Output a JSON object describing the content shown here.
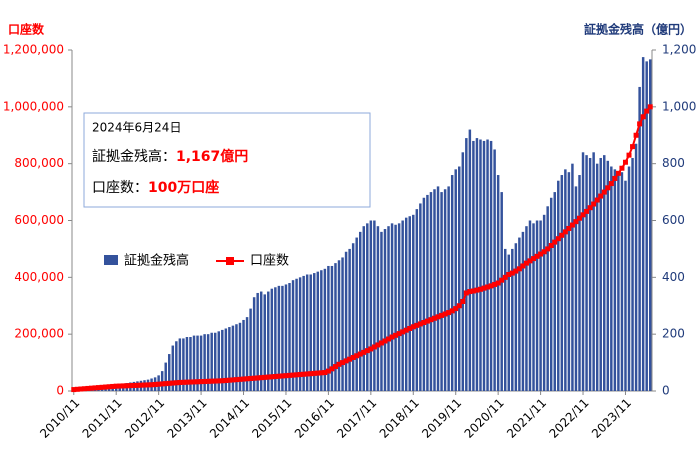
{
  "chart_data": {
    "type": "combo",
    "left_axis_label": "口座数",
    "right_axis_label": "証拠金残高（億円）",
    "annotation": {
      "date": "2024年6月24日",
      "balance_label": "証拠金残高：",
      "balance_value": "1,167億円",
      "accounts_label": "口座数：",
      "accounts_value": "100万口座"
    },
    "categories": [
      "2010/11",
      null,
      null,
      null,
      null,
      null,
      null,
      null,
      null,
      null,
      null,
      null,
      "2011/11",
      null,
      null,
      null,
      null,
      null,
      null,
      null,
      null,
      null,
      null,
      null,
      "2012/11",
      null,
      null,
      null,
      null,
      null,
      null,
      null,
      null,
      null,
      null,
      null,
      "2013/11",
      null,
      null,
      null,
      null,
      null,
      null,
      null,
      null,
      null,
      null,
      null,
      "2014/11",
      null,
      null,
      null,
      null,
      null,
      null,
      null,
      null,
      null,
      null,
      null,
      "2015/11",
      null,
      null,
      null,
      null,
      null,
      null,
      null,
      null,
      null,
      null,
      null,
      "2016/11",
      null,
      null,
      null,
      null,
      null,
      null,
      null,
      null,
      null,
      null,
      null,
      "2017/11",
      null,
      null,
      null,
      null,
      null,
      null,
      null,
      null,
      null,
      null,
      null,
      "2018/11",
      null,
      null,
      null,
      null,
      null,
      null,
      null,
      null,
      null,
      null,
      null,
      "2019/11",
      null,
      null,
      null,
      null,
      null,
      null,
      null,
      null,
      null,
      null,
      null,
      "2020/11",
      null,
      null,
      null,
      null,
      null,
      null,
      null,
      null,
      null,
      null,
      null,
      "2021/11",
      null,
      null,
      null,
      null,
      null,
      null,
      null,
      null,
      null,
      null,
      null,
      "2022/11",
      null,
      null,
      null,
      null,
      null,
      null,
      null,
      null,
      null,
      null,
      null,
      "2023/11",
      null,
      null,
      null,
      null,
      null,
      null,
      null
    ],
    "series": [
      {
        "name": "証拠金残高",
        "type": "bar",
        "axis": "y2",
        "color": "#34529c",
        "values": [
          8,
          9,
          10,
          11,
          12,
          13,
          14,
          15,
          16,
          17,
          18,
          20,
          22,
          24,
          26,
          28,
          30,
          32,
          34,
          36,
          38,
          40,
          44,
          48,
          55,
          70,
          100,
          130,
          160,
          175,
          185,
          185,
          190,
          190,
          195,
          195,
          195,
          200,
          200,
          205,
          205,
          210,
          215,
          220,
          225,
          230,
          235,
          240,
          250,
          260,
          290,
          330,
          345,
          350,
          340,
          350,
          360,
          365,
          370,
          370,
          375,
          380,
          390,
          395,
          400,
          405,
          410,
          410,
          415,
          420,
          425,
          430,
          440,
          440,
          450,
          460,
          470,
          490,
          500,
          520,
          540,
          560,
          580,
          590,
          600,
          600,
          580,
          560,
          570,
          580,
          590,
          585,
          590,
          600,
          610,
          615,
          620,
          640,
          660,
          680,
          690,
          700,
          710,
          720,
          700,
          710,
          720,
          760,
          780,
          790,
          840,
          890,
          920,
          880,
          890,
          885,
          880,
          885,
          880,
          850,
          760,
          700,
          500,
          480,
          500,
          520,
          540,
          560,
          580,
          600,
          590,
          600,
          600,
          620,
          650,
          680,
          700,
          740,
          760,
          780,
          770,
          800,
          720,
          760,
          840,
          830,
          820,
          840,
          800,
          820,
          830,
          810,
          790,
          780,
          760,
          770,
          740,
          790,
          820,
          870,
          1070,
          1175,
          1160,
          1167
        ]
      },
      {
        "name": "口座数",
        "type": "line",
        "axis": "y",
        "color": "#ff0000",
        "values": [
          5000,
          6000,
          7000,
          8000,
          9000,
          10000,
          11000,
          12000,
          13000,
          14000,
          15000,
          16000,
          17000,
          17500,
          18000,
          18500,
          19000,
          19500,
          20000,
          20500,
          21000,
          21500,
          22000,
          23000,
          24000,
          25000,
          26000,
          27000,
          28000,
          29000,
          30000,
          30500,
          31000,
          31500,
          32000,
          32500,
          33000,
          33500,
          34000,
          34500,
          35000,
          35500,
          36000,
          37000,
          38000,
          39000,
          40000,
          41000,
          42000,
          43000,
          44000,
          45000,
          46000,
          47000,
          48000,
          49000,
          50000,
          51000,
          52000,
          53000,
          54000,
          55000,
          56000,
          57000,
          58000,
          59000,
          60000,
          61000,
          62000,
          63000,
          64000,
          65000,
          70000,
          78000,
          86000,
          94000,
          100000,
          106000,
          112000,
          118000,
          124000,
          130000,
          136000,
          142000,
          148000,
          155000,
          162000,
          169000,
          176000,
          183000,
          190000,
          196000,
          202000,
          208000,
          214000,
          220000,
          226000,
          231000,
          236000,
          241000,
          246000,
          251000,
          256000,
          261000,
          266000,
          271000,
          276000,
          282000,
          290000,
          300000,
          315000,
          345000,
          350000,
          352000,
          355000,
          358000,
          362000,
          366000,
          370000,
          375000,
          380000,
          390000,
          400000,
          410000,
          415000,
          422000,
          430000,
          440000,
          450000,
          458000,
          466000,
          474000,
          482000,
          490000,
          500000,
          512000,
          524000,
          536000,
          548000,
          560000,
          572000,
          584000,
          596000,
          608000,
          620000,
          632000,
          645000,
          658000,
          672000,
          686000,
          700000,
          715000,
          730000,
          748000,
          766000,
          784000,
          805000,
          830000,
          860000,
          900000,
          940000,
          965000,
          985000,
          1000000
        ]
      }
    ],
    "ylim": [
      0,
      1200000
    ],
    "yticks": [
      0,
      {
        "value": 200000,
        "label": "200,000"
      },
      {
        "value": 400000,
        "label": "400,000"
      },
      {
        "value": 600000,
        "label": "600,000"
      },
      {
        "value": 800000,
        "label": "800,000"
      },
      {
        "value": 1000000,
        "label": "1,000,000"
      },
      {
        "value": 1200000,
        "label": "1,200,000"
      }
    ],
    "y2lim": [
      0,
      1200
    ],
    "y2ticks": [
      0,
      200,
      400,
      600,
      800,
      {
        "value": 1000,
        "label": "1,000"
      },
      {
        "value": 1200,
        "label": "1,200"
      }
    ],
    "grid": false
  }
}
